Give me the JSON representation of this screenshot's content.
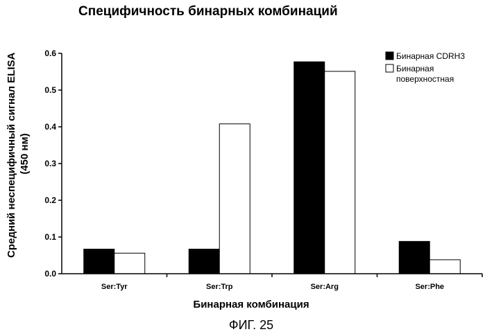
{
  "chart_data": {
    "type": "bar",
    "title": "Специфичность бинарных комбинаций",
    "xlabel": "Бинарная комбинация",
    "ylabel_lines": [
      "Средний неспецифичный сигнал ELISA",
      "(450 нм)"
    ],
    "categories": [
      "Ser:Tyr",
      "Ser:Trp",
      "Ser:Arg",
      "Ser:Phe"
    ],
    "series": [
      {
        "name": "Бинарная CDRH3",
        "name_lines": [
          "Бинарная CDRH3"
        ],
        "color": "#000000",
        "values": [
          0.067,
          0.067,
          0.577,
          0.088
        ]
      },
      {
        "name": "Бинарная поверхностная",
        "name_lines": [
          "Бинарная",
          "поверхностная"
        ],
        "color": "#ffffff",
        "values": [
          0.056,
          0.408,
          0.551,
          0.038
        ]
      }
    ],
    "ylim": [
      0,
      0.6
    ],
    "yticks": [
      "0.0",
      "0.1",
      "0.2",
      "0.3",
      "0.4",
      "0.5",
      "0.6"
    ],
    "grid": false,
    "legend": "top-right"
  },
  "caption": "ФИГ. 25"
}
